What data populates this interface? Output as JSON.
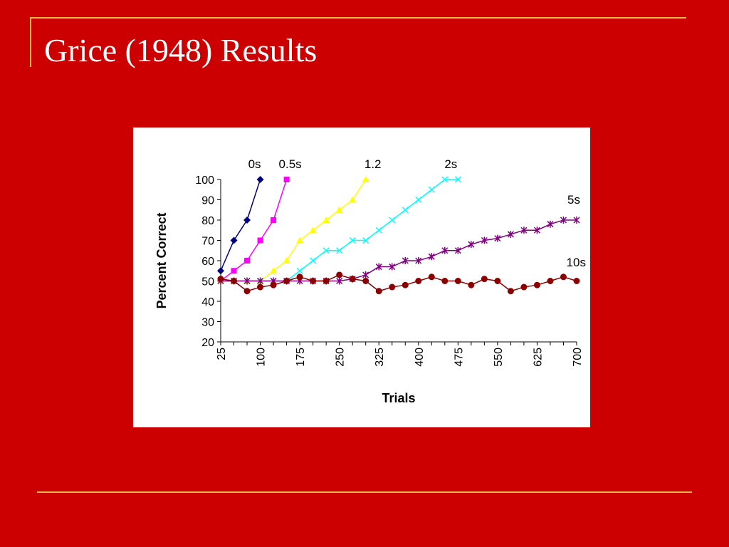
{
  "slide": {
    "title": "Grice (1948) Results"
  },
  "colors": {
    "background": "#cc0000",
    "rule": "#e6b84a",
    "title": "#ffffff"
  },
  "chart_data": {
    "type": "line",
    "xlabel": "Trials",
    "ylabel": "Percent Correct",
    "x_ticks": [
      25,
      100,
      175,
      250,
      325,
      400,
      475,
      550,
      625,
      700
    ],
    "xlim": [
      25,
      700
    ],
    "ylim": [
      20,
      100
    ],
    "y_ticks": [
      20,
      30,
      40,
      50,
      60,
      70,
      80,
      90,
      100
    ],
    "grid": false,
    "legend": "inline labels",
    "series": [
      {
        "name": "0s",
        "color": "#000080",
        "marker": "diamond",
        "x": [
          25,
          50,
          75,
          100
        ],
        "y": [
          55,
          70,
          80,
          100
        ]
      },
      {
        "name": "0.5s",
        "color": "#ff00ff",
        "marker": "square",
        "x": [
          25,
          50,
          75,
          100,
          125,
          150
        ],
        "y": [
          50,
          55,
          60,
          70,
          80,
          100
        ]
      },
      {
        "name": "1.2",
        "color": "#ffff00",
        "marker": "triangle",
        "x": [
          25,
          50,
          75,
          100,
          125,
          150,
          175,
          200,
          225,
          250,
          275,
          300
        ],
        "y": [
          50,
          50,
          50,
          50,
          55,
          60,
          70,
          75,
          80,
          85,
          90,
          100
        ]
      },
      {
        "name": "2s",
        "color": "#00ffff",
        "marker": "x",
        "x": [
          25,
          50,
          75,
          100,
          125,
          150,
          175,
          200,
          225,
          250,
          275,
          300,
          325,
          350,
          375,
          400,
          425,
          450,
          475
        ],
        "y": [
          50,
          50,
          50,
          50,
          50,
          50,
          55,
          60,
          65,
          65,
          70,
          70,
          75,
          80,
          85,
          90,
          95,
          100,
          100
        ]
      },
      {
        "name": "5s",
        "color": "#800080",
        "marker": "star",
        "x": [
          25,
          50,
          75,
          100,
          125,
          150,
          175,
          200,
          225,
          250,
          275,
          300,
          325,
          350,
          375,
          400,
          425,
          450,
          475,
          500,
          525,
          550,
          575,
          600,
          625,
          650,
          675,
          700
        ],
        "y": [
          50,
          50,
          50,
          50,
          50,
          50,
          50,
          50,
          50,
          50,
          51,
          53,
          57,
          57,
          60,
          60,
          62,
          65,
          65,
          68,
          70,
          71,
          73,
          75,
          75,
          78,
          80,
          80
        ]
      },
      {
        "name": "10s",
        "color": "#8b0000",
        "marker": "circle",
        "x": [
          25,
          50,
          75,
          100,
          125,
          150,
          175,
          200,
          225,
          250,
          275,
          300,
          325,
          350,
          375,
          400,
          425,
          450,
          475,
          500,
          525,
          550,
          575,
          600,
          625,
          650,
          675,
          700
        ],
        "y": [
          51,
          50,
          45,
          47,
          48,
          50,
          52,
          50,
          50,
          53,
          51,
          50,
          45,
          47,
          48,
          50,
          52,
          50,
          50,
          48,
          51,
          50,
          45,
          47,
          48,
          50,
          52,
          50
        ]
      }
    ]
  }
}
